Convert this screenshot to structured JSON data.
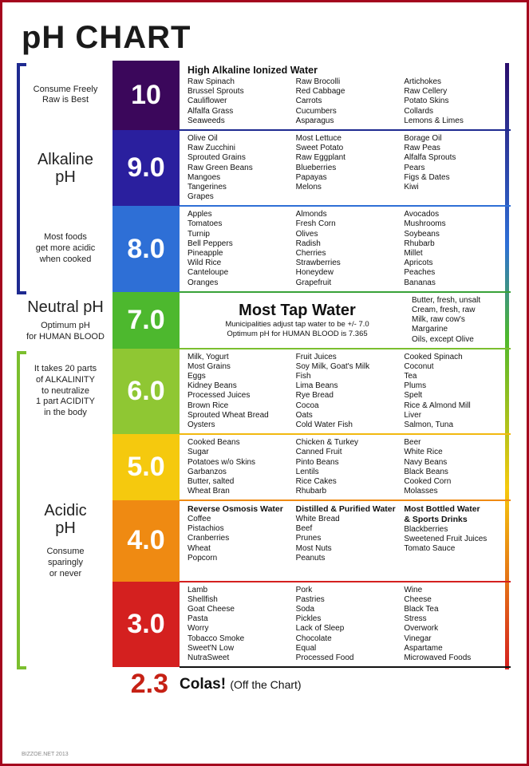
{
  "title": "pH CHART",
  "border_color": "#a4071e",
  "right_bar": {
    "top_color": "#2a0d6b",
    "bottom_color": "#d4201f"
  },
  "alkaline_bracket": {
    "color": "#1e2a90"
  },
  "acidic_bracket": {
    "color": "#7bbf2e"
  },
  "cola": {
    "value": "2.3",
    "label": "Colas!",
    "note": "(Off the Chart)",
    "color": "#c62115"
  },
  "credit": "BIZZOE.NET 2013",
  "levels": [
    {
      "value": "10",
      "box_color": "#3b075b",
      "divider_color": "#1e2a90",
      "side": "Consume Freely\nRaw is Best",
      "header": "High Alkaline Ionized Water",
      "cols": [
        [
          "Raw Spinach",
          "Brussel Sprouts",
          "Cauliflower",
          "Alfalfa Grass",
          "Seaweeds"
        ],
        [
          "Raw Brocolli",
          "Red Cabbage",
          "Carrots",
          "Cucumbers",
          "Asparagus"
        ],
        [
          "Artichokes",
          "Raw Cellery",
          "Potato Skins",
          "Collards",
          "Lemons & Limes"
        ]
      ]
    },
    {
      "value": "9.0",
      "box_color": "#2a1f9e",
      "divider_color": "#2e6fd6",
      "side": "SECTION:Alkaline pH",
      "cols": [
        [
          "Olive Oil",
          "Raw Zucchini",
          "Sprouted Grains",
          "Raw Green Beans",
          "Mangoes",
          "Tangerines",
          "Grapes"
        ],
        [
          "Most Lettuce",
          "Sweet Potato",
          "Raw Eggplant",
          "Blueberries",
          "Papayas",
          "Melons"
        ],
        [
          "Borage Oil",
          "Raw Peas",
          "Alfalfa Sprouts",
          "Pears",
          "Figs & Dates",
          "Kiwi"
        ]
      ]
    },
    {
      "value": "8.0",
      "box_color": "#2e6fd6",
      "divider_color": "#38a238",
      "side": "Most  foods\nget more acidic\nwhen cooked",
      "cols": [
        [
          "Apples",
          "Tomatoes",
          "Turnip",
          "Bell Peppers",
          "Pineapple",
          "Wild Rice",
          "Canteloupe",
          "Oranges"
        ],
        [
          "Almonds",
          "Fresh Corn",
          "Olives",
          "Radish",
          "Cherries",
          "Strawberries",
          "Honeydew",
          "Grapefruit"
        ],
        [
          "Avocados",
          "Mushrooms",
          "Soybeans",
          "Rhubarb",
          "Millet",
          "Apricots",
          "Peaches",
          "Bananas"
        ]
      ]
    },
    {
      "value": "7.0",
      "box_color": "#4db82e",
      "divider_color": "#7bbf2e",
      "tap": true,
      "side": "BIG:Neutral pH|Optimum pH\nfor HUMAN BLOOD",
      "tap_title": "Most Tap Water",
      "tap_sub1": "Municipalities adjust tap water to be +/- 7.0",
      "tap_sub2": "Optimum pH for HUMAN BLOOD is 7.365",
      "tap_side": [
        "Butter, fresh, unsalt",
        "Cream, fresh, raw",
        "Milk, raw cow's",
        "Margarine",
        "Oils, except Olive"
      ]
    },
    {
      "value": "6.0",
      "box_color": "#8fc733",
      "divider_color": "#f2b90f",
      "side": "It takes 20 parts\nof ALKALINITY\nto neutralize\n1 part ACIDITY\nin the body",
      "cols": [
        [
          "Milk, Yogurt",
          "Most Grains",
          "Eggs",
          "Kidney Beans",
          "Processed Juices",
          "Brown Rice",
          "Sprouted Wheat Bread",
          "Oysters"
        ],
        [
          "Fruit Juices",
          "Soy Milk, Goat's Milk",
          "Fish",
          "Lima Beans",
          "Rye Bread",
          "Cocoa",
          "Oats",
          "Cold Water Fish"
        ],
        [
          "Cooked Spinach",
          "Coconut",
          "Tea",
          "Plums",
          "Spelt",
          "Rice & Almond Mill",
          "Liver",
          "Salmon, Tuna"
        ]
      ]
    },
    {
      "value": "5.0",
      "box_color": "#f5c90e",
      "divider_color": "#ef8a12",
      "side": "",
      "cols": [
        [
          "Cooked Beans",
          "Sugar",
          "Potatoes w/o Skins",
          "Garbanzos",
          "Butter, salted",
          "Wheat Bran"
        ],
        [
          "Chicken & Turkey",
          "Canned Fruit",
          "Pinto Beans",
          "Lentils",
          "Rice Cakes",
          "Rhubarb"
        ],
        [
          "Beer",
          "White Rice",
          "Navy Beans",
          "Black Beans",
          "Cooked Corn",
          "Molasses"
        ]
      ]
    },
    {
      "value": "4.0",
      "box_color": "#ef8a12",
      "divider_color": "#d4201f",
      "side": "SECTION:Acidic pH|Consume\nsparingly\nor never",
      "cols": [
        [
          "BOLD:Reverse Osmosis Water",
          "Coffee",
          "Pistachios",
          "Cranberries",
          "Wheat",
          "Popcorn"
        ],
        [
          "BOLD:Distilled & Purified Water",
          "White Bread",
          "Beef",
          "Prunes",
          "Most Nuts",
          "Peanuts"
        ],
        [
          "BOLD:Most Bottled Water",
          "BOLD:& Sports Drinks",
          "Blackberries",
          "Sweetened Fruit Juices",
          "Tomato Sauce"
        ]
      ]
    },
    {
      "value": "3.0",
      "box_color": "#d4201f",
      "divider_color": "#111",
      "side": "",
      "cols": [
        [
          "Lamb",
          "Shellfish",
          "Goat Cheese",
          "Pasta",
          "Worry",
          "Tobacco Smoke",
          "Sweet'N Low",
          "NutraSweet"
        ],
        [
          "Pork",
          "Pastries",
          "Soda",
          "Pickles",
          "Lack of Sleep",
          "Chocolate",
          "Equal",
          "Processed Food"
        ],
        [
          "Wine",
          "Cheese",
          "Black Tea",
          "Stress",
          "Overwork",
          "Vinegar",
          "Aspartame",
          "Microwaved Foods"
        ]
      ]
    }
  ]
}
